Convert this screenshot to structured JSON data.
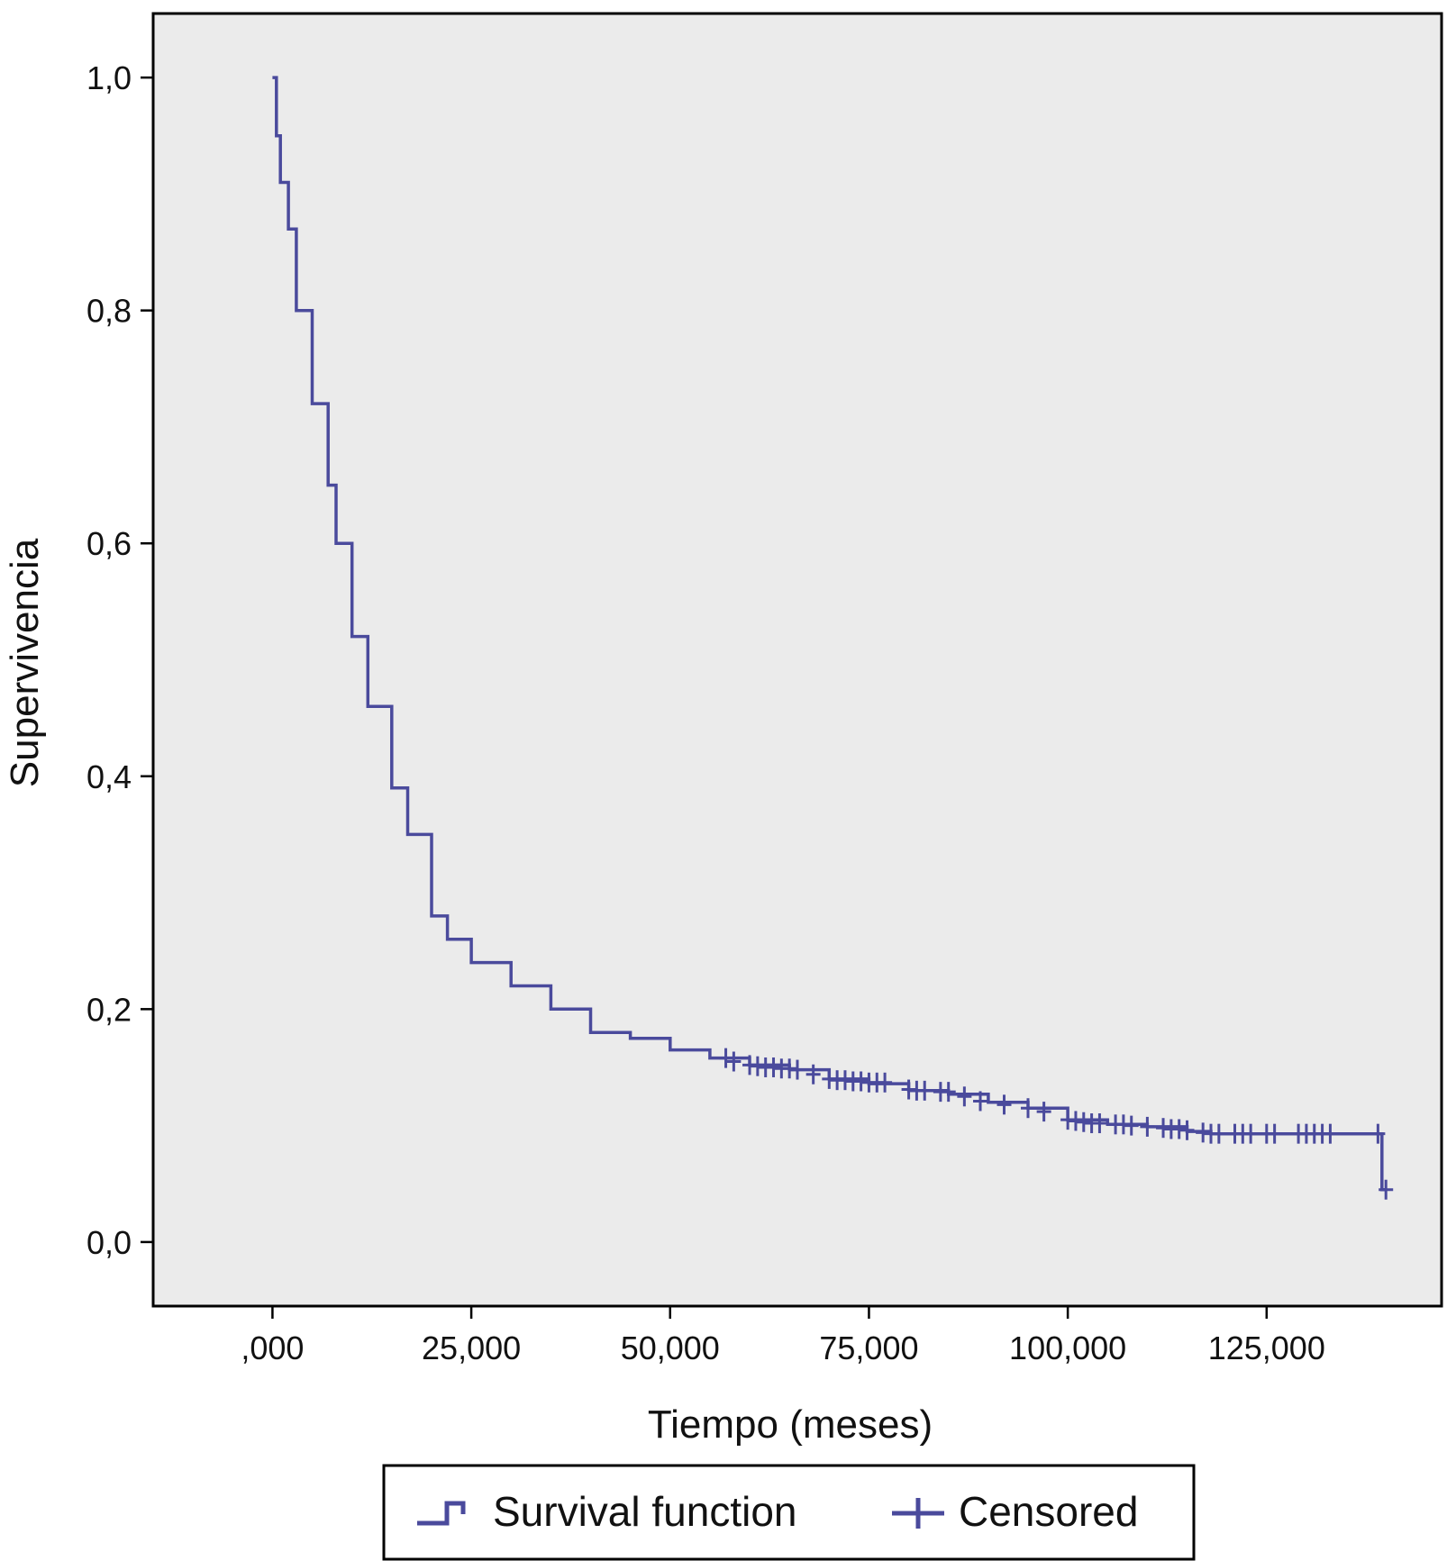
{
  "chart_data": {
    "type": "line",
    "xlabel": "Tiempo (meses)",
    "ylabel": "Supervivencia",
    "xlim": [
      -15000,
      147000
    ],
    "ylim": [
      -0.055,
      1.055
    ],
    "x_ticks": [
      {
        "value": 0,
        "label": ",000"
      },
      {
        "value": 25000,
        "label": "25,000"
      },
      {
        "value": 50000,
        "label": "50,000"
      },
      {
        "value": 75000,
        "label": "75,000"
      },
      {
        "value": 100000,
        "label": "100,000"
      },
      {
        "value": 125000,
        "label": "125,000"
      }
    ],
    "y_ticks": [
      {
        "value": 0.0,
        "label": "0,0"
      },
      {
        "value": 0.2,
        "label": "0,2"
      },
      {
        "value": 0.4,
        "label": "0,4"
      },
      {
        "value": 0.6,
        "label": "0,6"
      },
      {
        "value": 0.8,
        "label": "0,8"
      },
      {
        "value": 1.0,
        "label": "1,0"
      }
    ],
    "grid": false,
    "legend_position": "bottom",
    "legend": [
      {
        "label": "Survival function",
        "symbol": "step"
      },
      {
        "label": "Censored",
        "symbol": "plus"
      }
    ],
    "series": [
      {
        "name": "Survival function",
        "kind": "step",
        "points": [
          [
            0,
            1.0
          ],
          [
            500,
            0.95
          ],
          [
            1000,
            0.91
          ],
          [
            2000,
            0.87
          ],
          [
            3000,
            0.8
          ],
          [
            5000,
            0.72
          ],
          [
            7000,
            0.65
          ],
          [
            8000,
            0.6
          ],
          [
            10000,
            0.52
          ],
          [
            12000,
            0.46
          ],
          [
            15000,
            0.39
          ],
          [
            17000,
            0.35
          ],
          [
            20000,
            0.28
          ],
          [
            22000,
            0.26
          ],
          [
            25000,
            0.24
          ],
          [
            30000,
            0.22
          ],
          [
            35000,
            0.2
          ],
          [
            40000,
            0.18
          ],
          [
            45000,
            0.175
          ],
          [
            50000,
            0.165
          ],
          [
            55000,
            0.158
          ],
          [
            60000,
            0.152
          ],
          [
            65000,
            0.148
          ],
          [
            70000,
            0.14
          ],
          [
            75000,
            0.136
          ],
          [
            80000,
            0.13
          ],
          [
            85000,
            0.127
          ],
          [
            90000,
            0.12
          ],
          [
            95000,
            0.115
          ],
          [
            100000,
            0.105
          ],
          [
            105000,
            0.101
          ],
          [
            110000,
            0.099
          ],
          [
            115000,
            0.095
          ],
          [
            118000,
            0.093
          ],
          [
            125000,
            0.093
          ],
          [
            139000,
            0.093
          ],
          [
            139500,
            0.045
          ],
          [
            140000,
            0.045
          ]
        ]
      },
      {
        "name": "Censored",
        "kind": "markers",
        "points": [
          [
            57000,
            0.158
          ],
          [
            58000,
            0.155
          ],
          [
            60000,
            0.152
          ],
          [
            61000,
            0.151
          ],
          [
            62000,
            0.15
          ],
          [
            63000,
            0.15
          ],
          [
            64000,
            0.149
          ],
          [
            65000,
            0.149
          ],
          [
            66000,
            0.148
          ],
          [
            68000,
            0.144
          ],
          [
            70000,
            0.14
          ],
          [
            71000,
            0.139
          ],
          [
            72000,
            0.139
          ],
          [
            73000,
            0.138
          ],
          [
            74000,
            0.138
          ],
          [
            75000,
            0.137
          ],
          [
            76000,
            0.137
          ],
          [
            77000,
            0.137
          ],
          [
            80000,
            0.131
          ],
          [
            81000,
            0.13
          ],
          [
            82000,
            0.13
          ],
          [
            84000,
            0.129
          ],
          [
            85000,
            0.129
          ],
          [
            87000,
            0.125
          ],
          [
            89000,
            0.121
          ],
          [
            92000,
            0.118
          ],
          [
            95000,
            0.115
          ],
          [
            97000,
            0.112
          ],
          [
            100000,
            0.105
          ],
          [
            101000,
            0.104
          ],
          [
            102000,
            0.103
          ],
          [
            103000,
            0.102
          ],
          [
            104000,
            0.102
          ],
          [
            106000,
            0.101
          ],
          [
            107000,
            0.101
          ],
          [
            108000,
            0.1
          ],
          [
            110000,
            0.099
          ],
          [
            112000,
            0.098
          ],
          [
            113000,
            0.097
          ],
          [
            114000,
            0.097
          ],
          [
            115000,
            0.096
          ],
          [
            117000,
            0.094
          ],
          [
            118000,
            0.093
          ],
          [
            119000,
            0.093
          ],
          [
            121000,
            0.093
          ],
          [
            122000,
            0.093
          ],
          [
            123000,
            0.093
          ],
          [
            125000,
            0.093
          ],
          [
            126000,
            0.093
          ],
          [
            129000,
            0.093
          ],
          [
            130000,
            0.093
          ],
          [
            131000,
            0.093
          ],
          [
            132000,
            0.093
          ],
          [
            133000,
            0.093
          ],
          [
            139000,
            0.093
          ],
          [
            140000,
            0.045
          ]
        ]
      }
    ],
    "colors": {
      "line": "#4a4a9c",
      "plot_background": "#ebebeb",
      "frame": "#000000"
    }
  }
}
